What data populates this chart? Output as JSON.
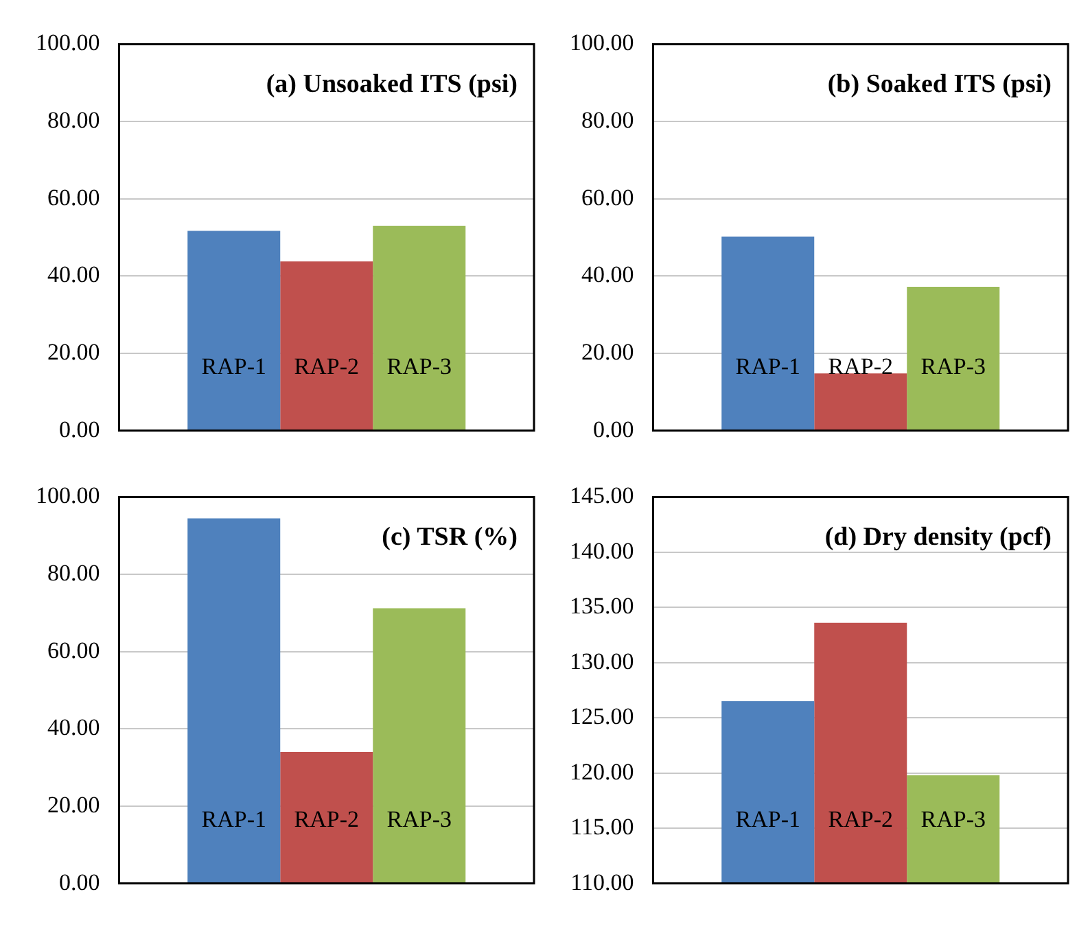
{
  "chart_data": [
    {
      "type": "bar",
      "title": "(a) Unsoaked ITS (psi)",
      "categories": [
        null
      ],
      "series": [
        {
          "name": "RAP-1",
          "color": "#4f81bd",
          "values": [
            51.7
          ]
        },
        {
          "name": "RAP-2",
          "color": "#c0504d",
          "values": [
            43.8
          ]
        },
        {
          "name": "RAP-3",
          "color": "#9bbb59",
          "values": [
            53.0
          ]
        }
      ],
      "ylim": [
        0,
        100
      ],
      "yticks": [
        {
          "value": 0,
          "label": "0.00"
        },
        {
          "value": 20,
          "label": "20.00"
        },
        {
          "value": 40,
          "label": "40.00"
        },
        {
          "value": 60,
          "label": "60.00"
        },
        {
          "value": 80,
          "label": "80.00"
        },
        {
          "value": 100,
          "label": "100.00"
        }
      ],
      "grid": "y",
      "legend": false,
      "tick_labels": "y"
    },
    {
      "type": "bar",
      "title": "(b) Soaked ITS (psi)",
      "categories": [
        null
      ],
      "series": [
        {
          "name": "RAP-1",
          "color": "#4f81bd",
          "values": [
            50.2
          ]
        },
        {
          "name": "RAP-2",
          "color": "#c0504d",
          "values": [
            14.8
          ]
        },
        {
          "name": "RAP-3",
          "color": "#9bbb59",
          "values": [
            37.2
          ]
        }
      ],
      "ylim": [
        0,
        100
      ],
      "yticks": [
        {
          "value": 0,
          "label": "0.00"
        },
        {
          "value": 20,
          "label": "20.00"
        },
        {
          "value": 40,
          "label": "40.00"
        },
        {
          "value": 60,
          "label": "60.00"
        },
        {
          "value": 80,
          "label": "80.00"
        },
        {
          "value": 100,
          "label": "100.00"
        }
      ],
      "grid": "y",
      "legend": false,
      "tick_labels": "y"
    },
    {
      "type": "bar",
      "title": "(c) TSR (%)",
      "categories": [
        null
      ],
      "series": [
        {
          "name": "RAP-1",
          "color": "#4f81bd",
          "values": [
            94.5
          ]
        },
        {
          "name": "RAP-2",
          "color": "#c0504d",
          "values": [
            34.0
          ]
        },
        {
          "name": "RAP-3",
          "color": "#9bbb59",
          "values": [
            71.2
          ]
        }
      ],
      "ylim": [
        0,
        100
      ],
      "yticks": [
        {
          "value": 0,
          "label": "0.00"
        },
        {
          "value": 20,
          "label": "20.00"
        },
        {
          "value": 40,
          "label": "40.00"
        },
        {
          "value": 60,
          "label": "60.00"
        },
        {
          "value": 80,
          "label": "80.00"
        },
        {
          "value": 100,
          "label": "100.00"
        }
      ],
      "grid": "y",
      "legend": false,
      "tick_labels": "y"
    },
    {
      "type": "bar",
      "title": "(d) Dry density (pcf)",
      "categories": [
        null
      ],
      "series": [
        {
          "name": "RAP-1",
          "color": "#4f81bd",
          "values": [
            126.5
          ]
        },
        {
          "name": "RAP-2",
          "color": "#c0504d",
          "values": [
            133.6
          ]
        },
        {
          "name": "RAP-3",
          "color": "#9bbb59",
          "values": [
            119.8
          ]
        }
      ],
      "ylim": [
        110,
        145
      ],
      "yticks": [
        {
          "value": 110,
          "label": "110.00"
        },
        {
          "value": 115,
          "label": "115.00"
        },
        {
          "value": 120,
          "label": "120.00"
        },
        {
          "value": 125,
          "label": "125.00"
        },
        {
          "value": 130,
          "label": "130.00"
        },
        {
          "value": 135,
          "label": "135.00"
        },
        {
          "value": 140,
          "label": "140.00"
        },
        {
          "value": 145,
          "label": "145.00"
        }
      ],
      "grid": "y",
      "legend": false,
      "tick_labels": "y"
    }
  ]
}
